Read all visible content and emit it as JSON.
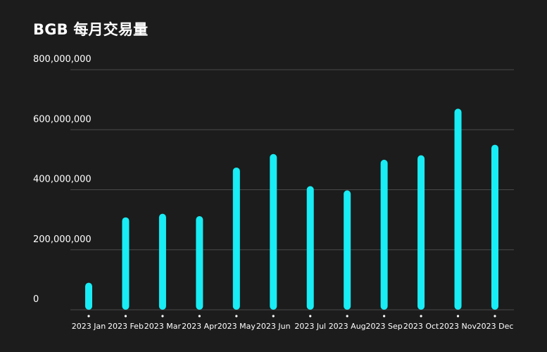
{
  "title": "BGB 每月交易量",
  "colors": {
    "background": "#1c1c1c",
    "bar": "#18ecf4",
    "grid": "#4a4a4a",
    "text": "#ffffff"
  },
  "chart_data": {
    "type": "bar",
    "title": "BGB 每月交易量",
    "xlabel": "",
    "ylabel": "",
    "ylim": [
      0,
      800000000
    ],
    "grid": true,
    "yticks": [
      0,
      200000000,
      400000000,
      600000000,
      800000000
    ],
    "ytick_labels": [
      "0",
      "200,000,000",
      "400,000,000",
      "600,000,000",
      "800,000,000"
    ],
    "categories": [
      "2023 Jan",
      "2023 Feb",
      "2023 Mar",
      "2023 Apr",
      "2023 May",
      "2023 Jun",
      "2023 Jul",
      "2023 Aug",
      "2023 Sep",
      "2023 Oct",
      "2023 Nov",
      "2023 Dec"
    ],
    "values": [
      90000000,
      308000000,
      320000000,
      312000000,
      474000000,
      519000000,
      412000000,
      398000000,
      500000000,
      515000000,
      670000000,
      550000000
    ]
  }
}
